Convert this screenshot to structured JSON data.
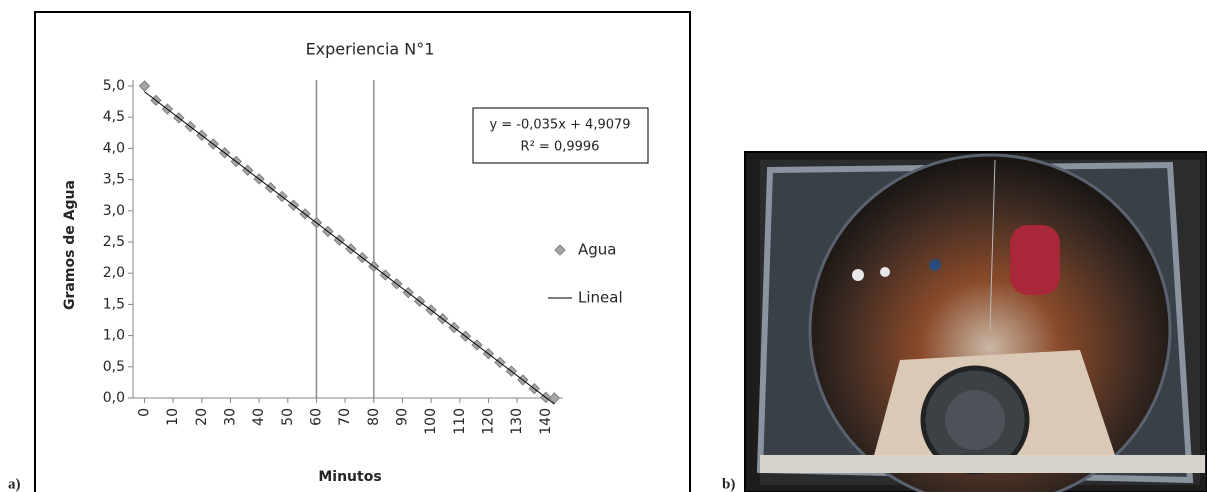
{
  "panel_labels": [
    "a)",
    "b)"
  ],
  "chart_data": {
    "type": "scatter",
    "title": "Experiencia N°1",
    "x_label": "Minutos",
    "y_label": "Gramos de Agua",
    "x": [
      0,
      4,
      8,
      12,
      16,
      20,
      24,
      28,
      32,
      36,
      40,
      44,
      48,
      52,
      56,
      60,
      64,
      68,
      72,
      76,
      80,
      84,
      88,
      92,
      96,
      100,
      104,
      108,
      112,
      116,
      120,
      124,
      128,
      132,
      136,
      140,
      143
    ],
    "series": [
      {
        "name": "Agua",
        "color": "#a6a6a6",
        "values": [
          5.0,
          4.77,
          4.63,
          4.49,
          4.35,
          4.21,
          4.07,
          3.93,
          3.79,
          3.65,
          3.51,
          3.37,
          3.23,
          3.09,
          2.95,
          2.81,
          2.67,
          2.53,
          2.39,
          2.25,
          2.11,
          1.97,
          1.83,
          1.69,
          1.55,
          1.41,
          1.27,
          1.13,
          0.99,
          0.85,
          0.71,
          0.57,
          0.43,
          0.29,
          0.15,
          0.01,
          0.0
        ]
      }
    ],
    "trendline": {
      "name": "Lineal",
      "color": "#000000",
      "slope": -0.035,
      "intercept": 4.9079,
      "equation": "y = -0,035x + 4,9079",
      "r_squared": "R² = 0,9996"
    },
    "xlim": [
      -4,
      146
    ],
    "xticks": [
      0,
      10,
      20,
      30,
      40,
      50,
      60,
      70,
      80,
      90,
      100,
      110,
      120,
      130,
      140
    ],
    "x_grid": [
      60,
      80
    ],
    "ylim": [
      0,
      5
    ],
    "yticks": [
      {
        "value": 0,
        "label": "0,0"
      },
      {
        "value": 0.5,
        "label": "0,5"
      },
      {
        "value": 1,
        "label": "1,0"
      },
      {
        "value": 1.5,
        "label": "1,5"
      },
      {
        "value": 2,
        "label": "2,0"
      },
      {
        "value": 2.5,
        "label": "2,5"
      },
      {
        "value": 3,
        "label": "3,0"
      },
      {
        "value": 3.5,
        "label": "3,5"
      },
      {
        "value": 4,
        "label": "4,0"
      },
      {
        "value": 4.5,
        "label": "4,5"
      },
      {
        "value": 5,
        "label": "5,0"
      }
    ],
    "legend": "right"
  }
}
